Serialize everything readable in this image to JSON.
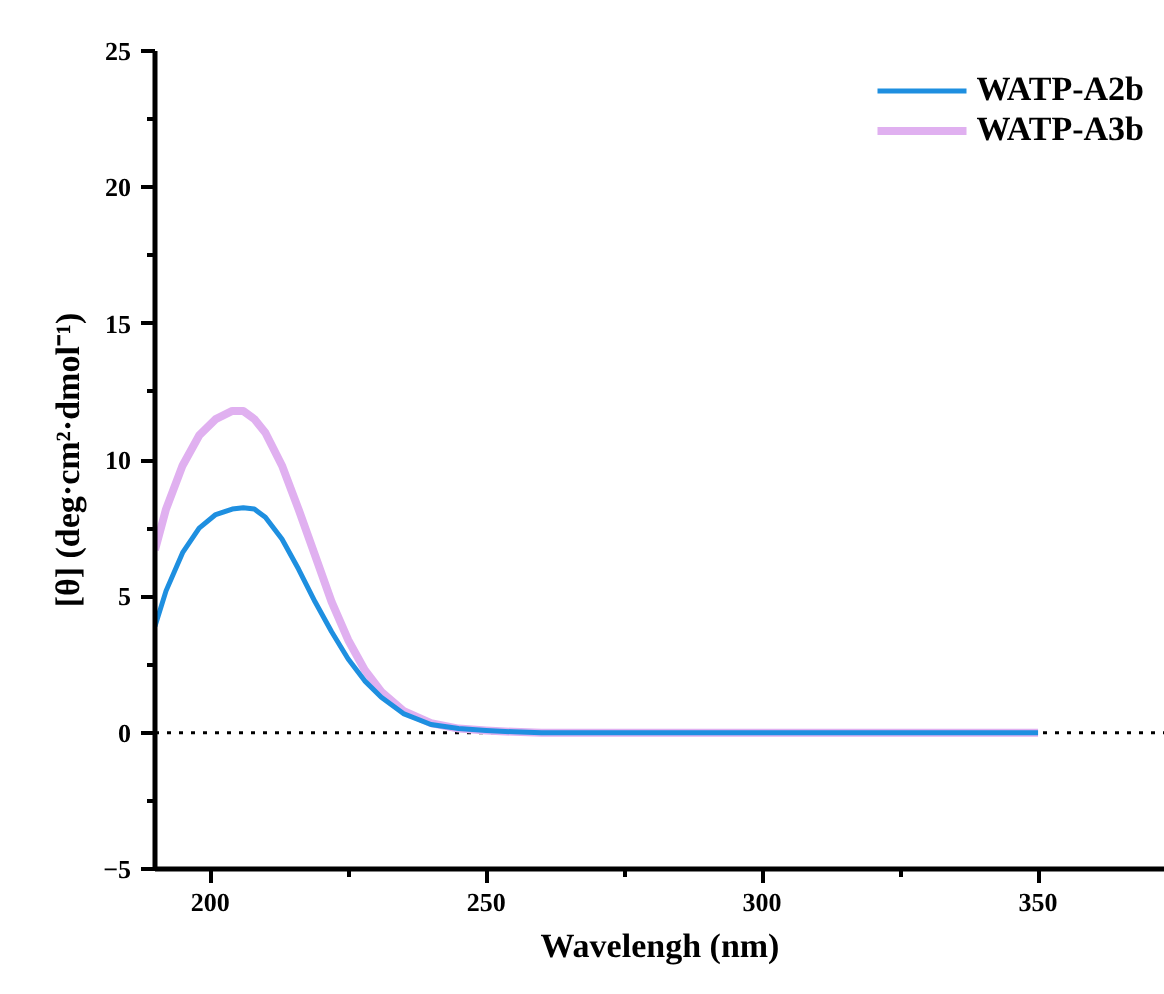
{
  "chart_data": {
    "type": "line",
    "xlabel": "Wavelengh (nm)",
    "ylabel": "[θ] (deg·cm²·dmol⁻¹)",
    "xlim": [
      190,
      373
    ],
    "ylim": [
      -5,
      25
    ],
    "xticks": [
      200,
      {
        "value": 225,
        "label": null
      },
      250,
      {
        "value": 275,
        "label": null
      },
      300,
      {
        "value": 325,
        "label": null
      },
      350
    ],
    "yticks": [
      -5,
      {
        "value": -2.5,
        "label": null
      },
      0,
      {
        "value": 2.5,
        "label": null
      },
      5,
      {
        "value": 7.5,
        "label": null
      },
      10,
      {
        "value": 12.5,
        "label": null
      },
      15,
      {
        "value": 17.5,
        "label": null
      },
      20,
      {
        "value": 22.5,
        "label": null
      },
      25
    ],
    "x": [
      190,
      192,
      195,
      198,
      201,
      204,
      206,
      208,
      210,
      213,
      216,
      219,
      222,
      225,
      228,
      231,
      235,
      240,
      245,
      250,
      255,
      260,
      350
    ],
    "series": [
      {
        "name": "WATP-A2b",
        "color": "#1e8fe0",
        "values": [
          3.9,
          5.2,
          6.6,
          7.5,
          8.0,
          8.2,
          8.25,
          8.2,
          7.9,
          7.1,
          6.0,
          4.8,
          3.7,
          2.7,
          1.9,
          1.3,
          0.7,
          0.3,
          0.15,
          0.08,
          0.03,
          0,
          0
        ]
      },
      {
        "name": "WATP-A3b",
        "color": "#e0b0f0",
        "values": [
          6.7,
          8.2,
          9.8,
          10.9,
          11.5,
          11.8,
          11.8,
          11.5,
          11.0,
          9.8,
          8.2,
          6.5,
          4.8,
          3.4,
          2.3,
          1.5,
          0.8,
          0.35,
          0.15,
          0.08,
          0.03,
          0,
          0
        ]
      }
    ],
    "ref_lines": [
      {
        "axis": "y",
        "value": 0,
        "color": "#000000",
        "line_style": "dotted"
      }
    ],
    "legend": "top right",
    "grid": false,
    "marker": "none",
    "line_style": "solid"
  }
}
